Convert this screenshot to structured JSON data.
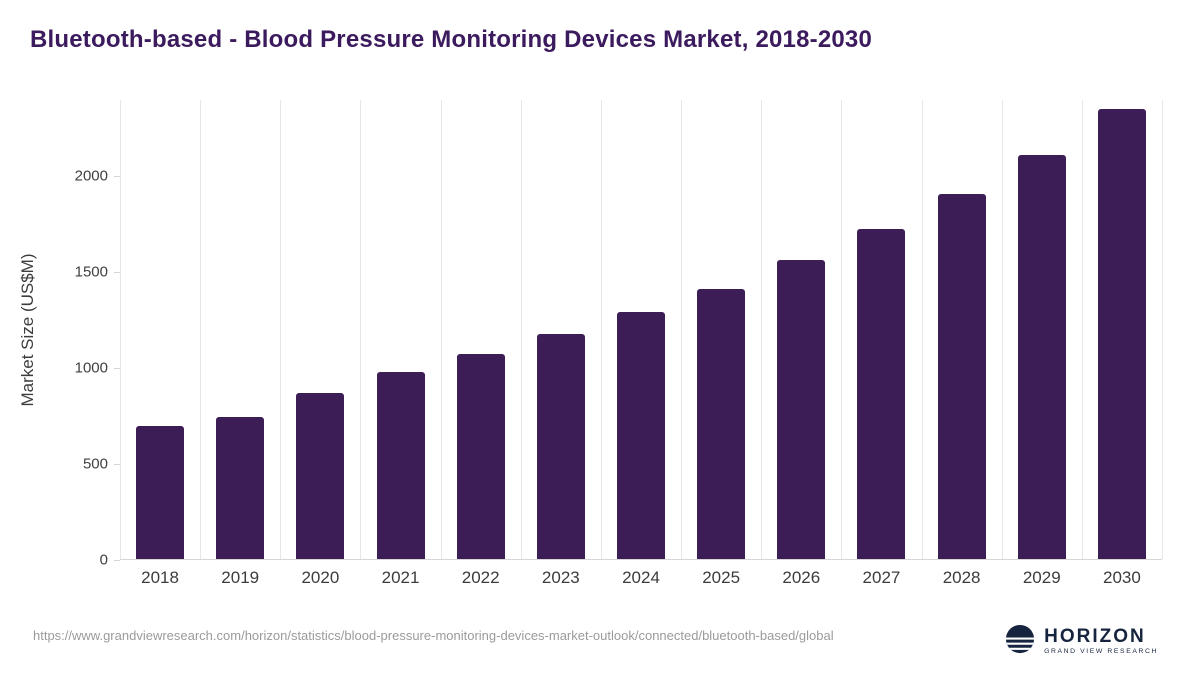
{
  "title": "Bluetooth-based - Blood Pressure Monitoring Devices Market, 2018-2030",
  "footer": {
    "source_url": "https://www.grandviewresearch.com/horizon/statistics/blood-pressure-monitoring-devices-market-outlook/connected/bluetooth-based/global"
  },
  "logo": {
    "name": "HORIZON",
    "subtitle": "GRAND VIEW RESEARCH"
  },
  "colors": {
    "bar": "#3d1d55",
    "title": "#3c1a5e",
    "grid": "#e7e7e7",
    "axis_text": "#3c3c3c",
    "footer_text": "#9b9b9b",
    "logo_navy": "#16243f"
  },
  "chart_data": {
    "type": "bar",
    "title": "Bluetooth-based - Blood Pressure Monitoring Devices Market, 2018-2030",
    "categories": [
      "2018",
      "2019",
      "2020",
      "2021",
      "2022",
      "2023",
      "2024",
      "2025",
      "2026",
      "2027",
      "2028",
      "2029",
      "2030"
    ],
    "values": [
      690,
      740,
      865,
      975,
      1065,
      1170,
      1285,
      1405,
      1555,
      1720,
      1900,
      2105,
      2345
    ],
    "xlabel": "",
    "ylabel": "Market Size (US$M)",
    "yticks": [
      0,
      500,
      1000,
      1500,
      2000
    ],
    "ylim": [
      0,
      2395
    ],
    "grid": "vertical",
    "legend": false,
    "bar_color": "#3d1d55"
  }
}
